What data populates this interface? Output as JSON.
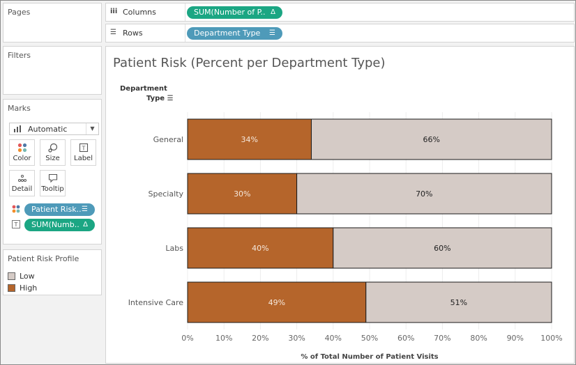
{
  "left_panel": {
    "pages": {
      "title": "Pages"
    },
    "filters": {
      "title": "Filters"
    },
    "marks": {
      "title": "Marks",
      "mark_type": {
        "label": "Automatic",
        "icon": "bar-chart-icon"
      },
      "buttons": [
        {
          "label": "Color",
          "icon": "color-dots-icon"
        },
        {
          "label": "Size",
          "icon": "size-icon"
        },
        {
          "label": "Label",
          "icon": "label-icon"
        },
        {
          "label": "Detail",
          "icon": "detail-icon"
        },
        {
          "label": "Tooltip",
          "icon": "tooltip-icon"
        }
      ],
      "fields": [
        {
          "label": "Patient Risk..",
          "encoding": "color",
          "color": "#4e9ab9"
        },
        {
          "label": "SUM(Numb..",
          "encoding": "label",
          "color": "#1ba683"
        }
      ]
    },
    "legend": {
      "title": "Patient Risk Profile",
      "items": [
        {
          "label": "Low",
          "color": "#d5cbc6"
        },
        {
          "label": "High",
          "color": "#b5652b"
        }
      ]
    }
  },
  "shelves": {
    "columns": {
      "label": "Columns",
      "pill": "SUM(Number of P..",
      "pill_color": "#1ba683"
    },
    "rows": {
      "label": "Rows",
      "pill": "Department Type",
      "pill_color": "#4e9ab9"
    }
  },
  "viz": {
    "title": "Patient Risk (Percent per Department Type)",
    "row_header_line1": "Department",
    "row_header_line2": "Type"
  },
  "chart_data": {
    "type": "bar",
    "orientation": "horizontal",
    "stacked": true,
    "categories": [
      "General",
      "Specialty",
      "Labs",
      "Intensive Care"
    ],
    "series": [
      {
        "name": "High",
        "color": "#b5652b",
        "values": [
          34,
          30,
          40,
          49
        ],
        "labels": [
          "34%",
          "30%",
          "40%",
          "49%"
        ]
      },
      {
        "name": "Low",
        "color": "#d5cbc6",
        "values": [
          66,
          70,
          60,
          51
        ],
        "labels": [
          "66%",
          "70%",
          "60%",
          "51%"
        ]
      }
    ],
    "xlim": [
      0,
      100
    ],
    "x_ticks": [
      "0%",
      "10%",
      "20%",
      "30%",
      "40%",
      "50%",
      "60%",
      "70%",
      "80%",
      "90%",
      "100%"
    ],
    "xlabel": "% of Total Number of Patient Visits",
    "ylabel": "Department Type"
  }
}
